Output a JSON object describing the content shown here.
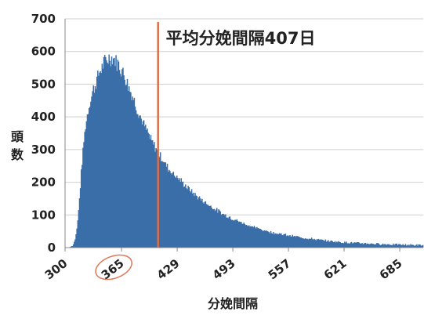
{
  "chart_data": {
    "type": "bar",
    "title": "",
    "xlabel": "分娩間隔",
    "ylabel": "頭数",
    "xlim": [
      300,
      712
    ],
    "ylim": [
      0,
      700
    ],
    "yticks": [
      0,
      100,
      200,
      300,
      400,
      500,
      600,
      700
    ],
    "xticks": [
      300,
      365,
      429,
      493,
      557,
      621,
      685
    ],
    "xtick_labels": [
      "300",
      "365",
      "429",
      "493",
      "557",
      "621",
      "685"
    ],
    "highlighted_xtick": "365",
    "grid": true,
    "bar_color": "#3a6ea8",
    "annotation": {
      "text": "平均分娩間隔407日",
      "x": 407,
      "line_color": "#d9704a"
    },
    "highlight_color": "#e0785a",
    "profile": [
      [
        300,
        0
      ],
      [
        305,
        1
      ],
      [
        308,
        5
      ],
      [
        310,
        12
      ],
      [
        312,
        30
      ],
      [
        314,
        70
      ],
      [
        316,
        130
      ],
      [
        318,
        210
      ],
      [
        320,
        280
      ],
      [
        322,
        340
      ],
      [
        325,
        400
      ],
      [
        328,
        440
      ],
      [
        332,
        480
      ],
      [
        336,
        510
      ],
      [
        340,
        540
      ],
      [
        344,
        560
      ],
      [
        348,
        575
      ],
      [
        352,
        582
      ],
      [
        356,
        578
      ],
      [
        360,
        565
      ],
      [
        365,
        545
      ],
      [
        370,
        515
      ],
      [
        375,
        480
      ],
      [
        380,
        445
      ],
      [
        385,
        410
      ],
      [
        390,
        378
      ],
      [
        395,
        350
      ],
      [
        400,
        322
      ],
      [
        405,
        300
      ],
      [
        410,
        278
      ],
      [
        415,
        257
      ],
      [
        420,
        238
      ],
      [
        429,
        215
      ],
      [
        440,
        185
      ],
      [
        450,
        160
      ],
      [
        460,
        140
      ],
      [
        470,
        122
      ],
      [
        480,
        105
      ],
      [
        493,
        88
      ],
      [
        505,
        74
      ],
      [
        520,
        60
      ],
      [
        535,
        48
      ],
      [
        557,
        37
      ],
      [
        580,
        28
      ],
      [
        600,
        21
      ],
      [
        621,
        16
      ],
      [
        650,
        12
      ],
      [
        685,
        9
      ],
      [
        712,
        7
      ]
    ]
  }
}
